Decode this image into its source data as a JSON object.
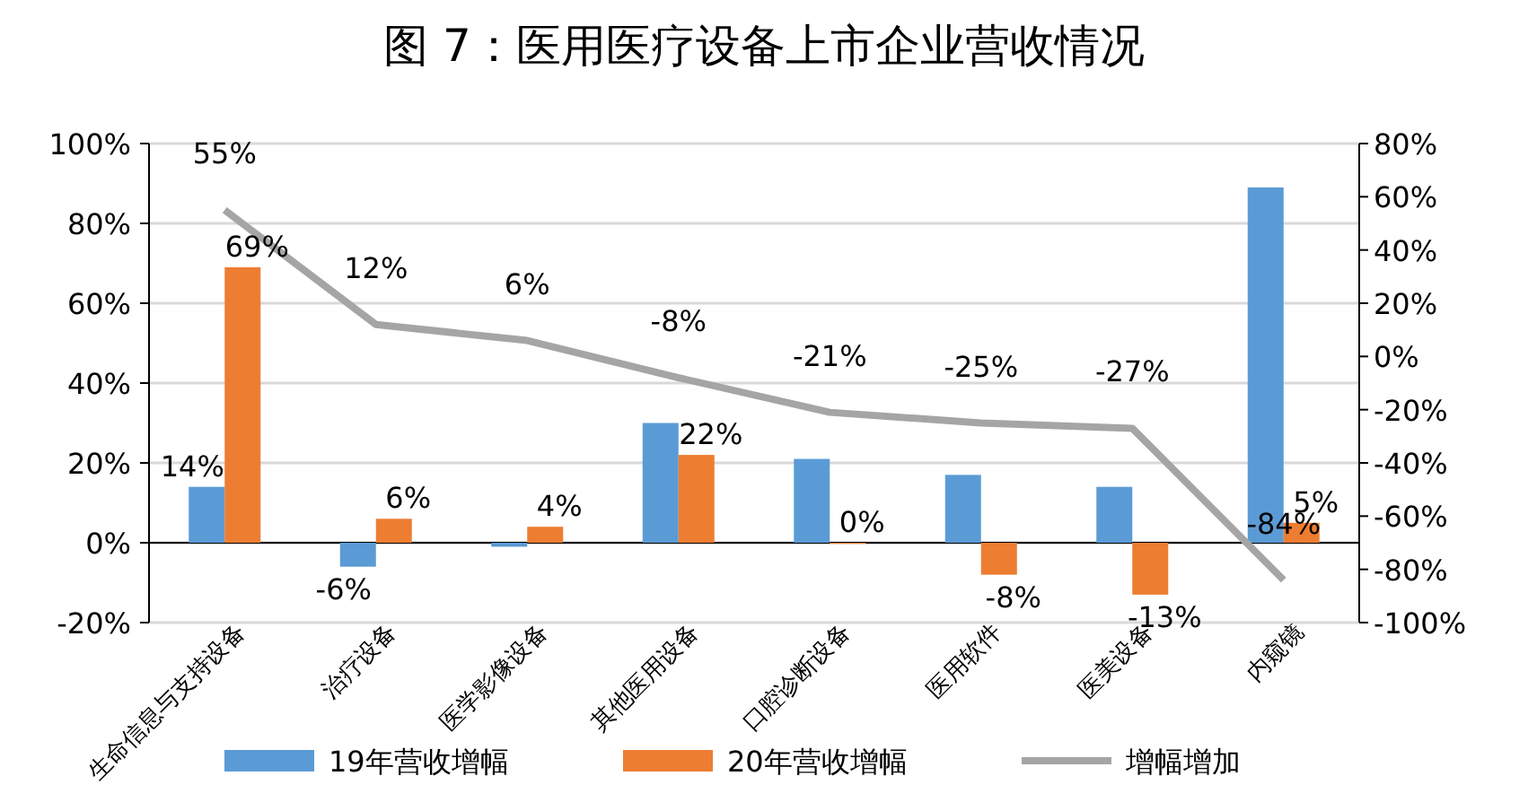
{
  "chart_data": {
    "type": "bar",
    "title": "图 7：医用医疗设备上市企业营收情况",
    "categories": [
      "生命信息与支持设备",
      "治疗设备",
      "医学影像设备",
      "其他医用设备",
      "口腔诊断设备",
      "医用软件",
      "医美设备",
      "内窥镜"
    ],
    "series": [
      {
        "name": "19年营收增幅",
        "color": "#5b9bd5",
        "values": [
          14,
          -6,
          -1,
          30,
          21,
          17,
          14,
          89
        ],
        "value_labels": [
          "14%",
          "-6%",
          null,
          null,
          null,
          null,
          null,
          null
        ]
      },
      {
        "name": "20年营收增幅",
        "color": "#ed7d31",
        "values": [
          69,
          6,
          4,
          22,
          0,
          -8,
          -13,
          5
        ],
        "value_labels": [
          "69%",
          "6%",
          "4%",
          "22%",
          "0%",
          "-8%",
          "-13%",
          "5%"
        ]
      },
      {
        "name": "增幅增加",
        "type": "line",
        "axis": "y2",
        "color": "#a5a5a5",
        "values": [
          55,
          12,
          6,
          -8,
          -21,
          -25,
          -27,
          -84
        ],
        "value_labels": [
          "55%",
          "12%",
          "6%",
          "-8%",
          "-21%",
          "-25%",
          "-27%",
          "-84%"
        ]
      }
    ],
    "ylim": [
      -20,
      100
    ],
    "yticks": [
      {
        "value": -20,
        "label": "-20%"
      },
      {
        "value": 0,
        "label": "0%"
      },
      {
        "value": 20,
        "label": "20%"
      },
      {
        "value": 40,
        "label": "40%"
      },
      {
        "value": 60,
        "label": "60%"
      },
      {
        "value": 80,
        "label": "80%"
      },
      {
        "value": 100,
        "label": "100%"
      }
    ],
    "y2lim": [
      -100,
      80
    ],
    "y2ticks": [
      {
        "value": -100,
        "label": "-100%"
      },
      {
        "value": -80,
        "label": "-80%"
      },
      {
        "value": -60,
        "label": "-60%"
      },
      {
        "value": -40,
        "label": "-40%"
      },
      {
        "value": -20,
        "label": "-20%"
      },
      {
        "value": 0,
        "label": "0%"
      },
      {
        "value": 20,
        "label": "20%"
      },
      {
        "value": 40,
        "label": "40%"
      },
      {
        "value": 60,
        "label": "60%"
      },
      {
        "value": 80,
        "label": "80%"
      }
    ],
    "grid": "y",
    "legend": "bottom"
  }
}
